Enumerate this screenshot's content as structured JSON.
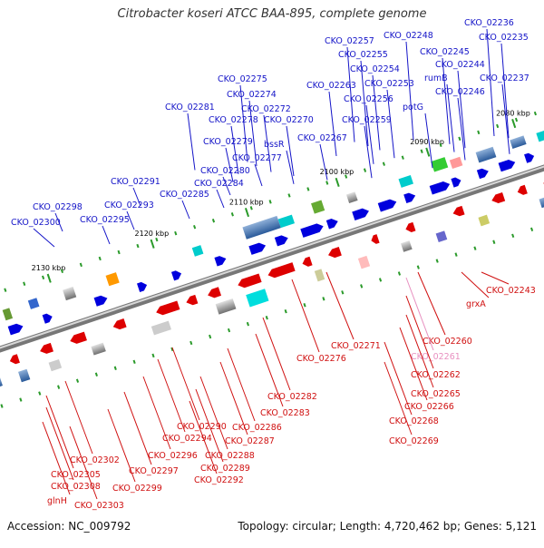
{
  "title": "Citrobacter koseri ATCC BAA-895, complete genome",
  "footer": {
    "accession": "Accession: NC_009792",
    "summary": "Topology: circular; Length: 4,720,462 bp; Genes: 5,121"
  },
  "scale_labels": [
    "2080 kbp",
    "2090 kbp",
    "2100 kbp",
    "2110 kbp",
    "2120 kbp",
    "2130 kbp"
  ],
  "labels_top": [
    "CKO_02236",
    "CKO_02235",
    "CKO_02248",
    "CKO_02257",
    "CKO_02245",
    "CKO_02255",
    "CKO_02244",
    "CKO_02254",
    "rumB",
    "CKO_02237",
    "CKO_02263",
    "CKO_02253",
    "CKO_02246",
    "CKO_02275",
    "CKO_02256",
    "CKO_02274",
    "potG",
    "CKO_02281",
    "CKO_02272",
    "CKO_02278",
    "CKO_02270",
    "CKO_02259",
    "CKO_02267",
    "CKO_02279",
    "bssR",
    "CKO_02277",
    "CKO_02280",
    "CKO_02284",
    "CKO_02291",
    "CKO_02285",
    "CKO_02298",
    "CKO_02293",
    "CKO_02295",
    "CKO_02300"
  ],
  "labels_bottom": [
    "CKO_02243",
    "grxA",
    "CKO_02260",
    "CKO_02271",
    "CKO_02261",
    "CKO_02276",
    "CKO_02262",
    "CKO_02265",
    "CKO_02282",
    "CKO_02266",
    "CKO_02283",
    "CKO_02268",
    "CKO_02290",
    "CKO_02286",
    "CKO_02294",
    "CKO_02287",
    "CKO_02269",
    "CKO_02296",
    "CKO_02288",
    "CKO_02302",
    "CKO_02297",
    "CKO_02289",
    "CKO_02305",
    "CKO_02292",
    "CKO_02299",
    "CKO_02308",
    "glnH",
    "CKO_02303"
  ],
  "highlight_label": "CKO_02261",
  "colors": {
    "forward_gene": "#0000dd",
    "reverse_gene": "#dd0000",
    "top_label": "#1414c8",
    "bottom_label": "#d01010",
    "highlight_label": "#e890c0",
    "backbone": "#999999",
    "tick": "#2a9a2a"
  }
}
